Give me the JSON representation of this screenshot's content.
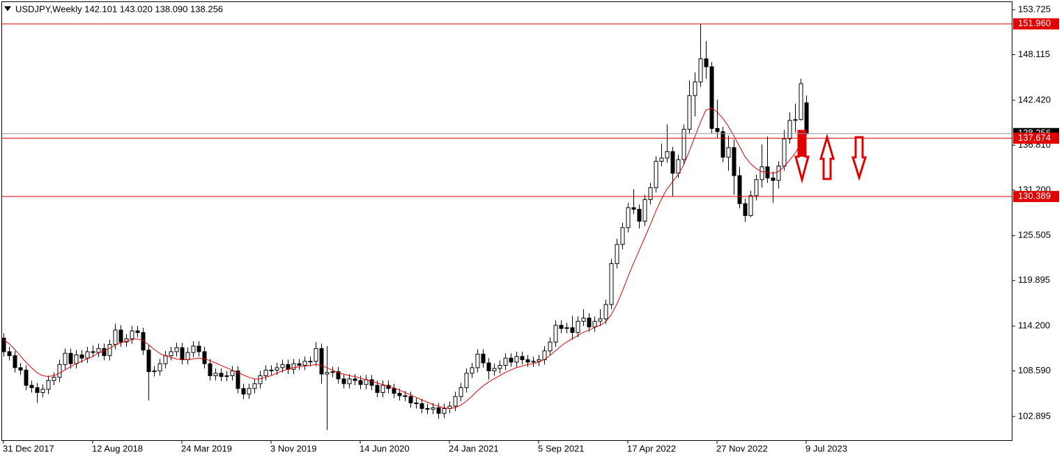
{
  "chart_data": {
    "type": "candlestick",
    "title": "USDJPY,Weekly  142.101 143.020 138.090 138.256",
    "categories": [
      "31 Dec 2017",
      null,
      null,
      null,
      null,
      null,
      null,
      null,
      null,
      null,
      null,
      null,
      null,
      null,
      null,
      null,
      "12 Aug 2018",
      null,
      null,
      null,
      null,
      null,
      null,
      null,
      null,
      null,
      null,
      null,
      null,
      null,
      null,
      null,
      "24 Mar 2019",
      null,
      null,
      null,
      null,
      null,
      null,
      null,
      null,
      null,
      null,
      null,
      null,
      null,
      null,
      null,
      "3 Nov 2019",
      null,
      null,
      null,
      null,
      null,
      null,
      null,
      null,
      null,
      null,
      null,
      null,
      null,
      null,
      null,
      "14 Jun 2020",
      null,
      null,
      null,
      null,
      null,
      null,
      null,
      null,
      null,
      null,
      null,
      null,
      null,
      null,
      null,
      "24 Jan 2021",
      null,
      null,
      null,
      null,
      null,
      null,
      null,
      null,
      null,
      null,
      null,
      null,
      null,
      null,
      null,
      "5 Sep 2021",
      null,
      null,
      null,
      null,
      null,
      null,
      null,
      null,
      null,
      null,
      null,
      null,
      null,
      null,
      null,
      "17 Apr 2022",
      null,
      null,
      null,
      null,
      null,
      null,
      null,
      null,
      null,
      null,
      null,
      null,
      null,
      null,
      null,
      "27 Nov 2022",
      null,
      null,
      null,
      null,
      null,
      null,
      null,
      null,
      null,
      null,
      null,
      null,
      null,
      null,
      null,
      "9 Jul 2023"
    ],
    "open": [
      112.7,
      111.0,
      110.5,
      109.0,
      108.7,
      106.8,
      106.5,
      105.9,
      106.3,
      107.4,
      107.8,
      109.4,
      110.8,
      109.5,
      110.6,
      110.2,
      111.0,
      110.9,
      111.4,
      110.5,
      111.9,
      113.7,
      112.2,
      112.6,
      113.6,
      113.4,
      111.2,
      108.5,
      108.6,
      109.5,
      110.5,
      111.0,
      111.5,
      110.0,
      110.9,
      111.7,
      111.0,
      109.5,
      108.0,
      108.3,
      107.9,
      108.0,
      108.6,
      106.4,
      105.7,
      106.4,
      107.0,
      108.0,
      108.7,
      108.7,
      109.0,
      109.4,
      108.8,
      109.5,
      109.3,
      109.8,
      109.8,
      111.4,
      108.2,
      108.4,
      108.5,
      107.6,
      107.0,
      107.6,
      107.4,
      106.9,
      107.5,
      106.8,
      105.9,
      106.8,
      106.4,
      105.8,
      105.5,
      105.4,
      104.6,
      104.5,
      103.9,
      103.8,
      104.0,
      103.3,
      103.9,
      104.2,
      105.4,
      106.5,
      108.3,
      109.0,
      110.7,
      109.6,
      108.6,
      108.9,
      109.3,
      110.2,
      109.7,
      110.4,
      110.0,
      109.7,
      109.8,
      110.0,
      111.1,
      112.2,
      114.3,
      113.9,
      114.0,
      113.4,
      114.8,
      115.2,
      114.1,
      114.8,
      115.1,
      116.9,
      122.0,
      124.4,
      126.5,
      129.0,
      128.8,
      127.3,
      130.0,
      131.5,
      134.8,
      135.2,
      136.0,
      133.3,
      135.0,
      138.8,
      143.0,
      144.7,
      147.6,
      146.6,
      138.9,
      138.5,
      135.3,
      136.5,
      133.0,
      129.5,
      128.0,
      130.5,
      132.5,
      134.1,
      132.7,
      132.4,
      134.2,
      137.6,
      139.9,
      140.0,
      142.101
    ],
    "high": [
      113.3,
      111.6,
      111.1,
      109.6,
      109.3,
      107.4,
      107.1,
      106.9,
      108.0,
      108.4,
      110.0,
      111.4,
      111.4,
      111.2,
      111.2,
      111.6,
      111.8,
      112.0,
      112.0,
      112.5,
      114.5,
      114.3,
      113.2,
      114.2,
      114.2,
      114.0,
      111.8,
      109.2,
      110.1,
      111.1,
      111.6,
      112.1,
      112.1,
      111.5,
      112.3,
      112.3,
      111.6,
      110.1,
      108.9,
      108.9,
      108.6,
      109.2,
      109.2,
      107.0,
      107.0,
      107.6,
      108.6,
      109.3,
      109.3,
      109.6,
      110.0,
      110.0,
      110.1,
      110.1,
      110.4,
      110.4,
      112.2,
      112.0,
      111.7,
      109.1,
      109.1,
      108.2,
      108.2,
      108.2,
      108.0,
      108.1,
      108.1,
      107.4,
      107.4,
      107.4,
      107.0,
      106.4,
      106.1,
      106.0,
      105.2,
      105.1,
      104.5,
      104.6,
      104.6,
      104.5,
      104.8,
      106.0,
      107.1,
      108.9,
      109.6,
      111.3,
      111.3,
      110.2,
      109.5,
      109.9,
      110.8,
      110.8,
      111.0,
      111.0,
      110.6,
      110.4,
      110.6,
      111.7,
      112.8,
      114.9,
      114.9,
      114.6,
      115.5,
      115.4,
      116.3,
      115.8,
      115.4,
      116.3,
      117.5,
      122.6,
      125.1,
      127.1,
      129.6,
      131.3,
      129.4,
      130.6,
      132.1,
      135.4,
      137.0,
      139.4,
      136.6,
      135.6,
      139.4,
      144.9,
      145.9,
      151.96,
      149.8,
      147.2,
      142.5,
      139.1,
      138.0,
      137.5,
      134.1,
      130.1,
      131.1,
      133.1,
      136.9,
      137.9,
      133.5,
      134.8,
      138.7,
      140.9,
      142.0,
      145.1,
      143.02
    ],
    "low": [
      110.4,
      109.9,
      108.4,
      108.1,
      106.2,
      105.9,
      104.6,
      105.3,
      105.7,
      106.8,
      107.2,
      108.8,
      108.9,
      108.9,
      109.6,
      109.6,
      110.3,
      110.3,
      109.9,
      109.9,
      111.3,
      111.6,
      111.6,
      112.0,
      112.8,
      110.6,
      104.9,
      107.9,
      108.0,
      108.9,
      109.9,
      110.4,
      109.4,
      109.4,
      110.3,
      110.4,
      108.9,
      107.4,
      107.4,
      107.3,
      107.3,
      107.4,
      105.8,
      105.1,
      105.1,
      105.8,
      106.4,
      107.4,
      108.1,
      108.1,
      108.4,
      108.2,
      108.2,
      108.7,
      108.7,
      109.2,
      109.2,
      107.0,
      101.2,
      107.8,
      107.0,
      106.4,
      106.4,
      106.8,
      106.3,
      106.3,
      106.2,
      105.3,
      105.3,
      105.8,
      105.2,
      104.9,
      104.8,
      104.0,
      103.9,
      103.3,
      103.2,
      103.2,
      102.6,
      102.7,
      103.3,
      103.6,
      104.8,
      105.9,
      107.7,
      108.4,
      109.0,
      107.5,
      108.0,
      108.3,
      108.7,
      109.1,
      109.1,
      109.4,
      109.1,
      109.1,
      109.2,
      109.4,
      110.5,
      111.6,
      113.3,
      113.3,
      112.5,
      112.8,
      114.2,
      113.5,
      113.5,
      114.2,
      114.5,
      116.3,
      121.4,
      123.8,
      125.9,
      128.2,
      126.4,
      126.7,
      129.4,
      130.9,
      134.2,
      134.6,
      130.4,
      132.7,
      134.4,
      138.2,
      140.4,
      144.1,
      145.1,
      138.3,
      137.7,
      134.7,
      133.6,
      130.6,
      128.9,
      127.2,
      127.8,
      129.9,
      131.5,
      132.1,
      129.6,
      131.4,
      133.6,
      137.0,
      138.4,
      139.9,
      138.09
    ],
    "close": [
      111.0,
      110.5,
      109.0,
      108.7,
      106.8,
      106.5,
      105.9,
      106.3,
      107.4,
      107.8,
      109.4,
      110.8,
      109.5,
      110.6,
      110.2,
      111.0,
      110.9,
      111.4,
      110.5,
      111.9,
      113.7,
      112.2,
      112.6,
      113.6,
      113.4,
      111.2,
      108.5,
      108.6,
      109.5,
      110.5,
      111.0,
      111.5,
      110.0,
      110.9,
      111.7,
      111.0,
      109.5,
      108.0,
      108.3,
      107.9,
      108.0,
      108.6,
      106.4,
      105.7,
      106.4,
      107.0,
      108.0,
      108.7,
      108.7,
      109.0,
      109.4,
      108.8,
      109.5,
      109.3,
      109.8,
      109.8,
      111.4,
      108.2,
      108.4,
      108.5,
      107.6,
      107.0,
      107.6,
      107.4,
      106.9,
      107.5,
      106.8,
      105.9,
      106.8,
      106.4,
      105.8,
      105.5,
      105.4,
      104.6,
      104.5,
      103.9,
      103.8,
      104.0,
      103.3,
      103.9,
      104.2,
      105.4,
      106.5,
      108.3,
      109.0,
      110.7,
      109.6,
      108.6,
      108.9,
      109.3,
      110.2,
      109.7,
      110.4,
      110.0,
      109.7,
      109.8,
      110.0,
      111.1,
      112.2,
      114.3,
      113.9,
      114.0,
      113.4,
      114.8,
      115.2,
      114.1,
      114.8,
      115.1,
      116.9,
      122.0,
      124.4,
      126.5,
      129.0,
      128.8,
      127.3,
      130.0,
      131.5,
      134.8,
      135.2,
      136.0,
      133.3,
      135.0,
      138.8,
      143.0,
      144.7,
      147.6,
      146.6,
      138.9,
      138.5,
      135.3,
      136.5,
      133.0,
      129.5,
      128.0,
      130.5,
      132.5,
      134.1,
      132.7,
      132.4,
      134.2,
      137.6,
      139.9,
      140.0,
      144.5,
      138.256
    ],
    "ma": {
      "color": "#e00000",
      "values": [
        112.5,
        112.0,
        111.3,
        110.5,
        109.7,
        109.0,
        108.4,
        108.0,
        107.9,
        108.0,
        108.3,
        108.7,
        109.1,
        109.5,
        109.8,
        110.1,
        110.4,
        110.8,
        111.1,
        111.4,
        111.8,
        112.1,
        112.3,
        112.5,
        112.6,
        112.4,
        111.9,
        111.3,
        110.8,
        110.5,
        110.3,
        110.1,
        110.0,
        110.0,
        110.1,
        110.2,
        110.1,
        109.9,
        109.6,
        109.3,
        109.0,
        108.7,
        108.4,
        108.1,
        107.8,
        107.6,
        107.6,
        107.8,
        108.0,
        108.3,
        108.6,
        108.8,
        109.0,
        109.1,
        109.2,
        109.3,
        109.4,
        109.3,
        109.0,
        108.7,
        108.4,
        108.2,
        108.0,
        107.9,
        107.7,
        107.5,
        107.3,
        107.1,
        106.9,
        106.7,
        106.5,
        106.2,
        105.9,
        105.6,
        105.3,
        105.0,
        104.7,
        104.4,
        104.2,
        104.0,
        103.9,
        104.0,
        104.3,
        104.8,
        105.4,
        106.1,
        106.7,
        107.2,
        107.6,
        108.0,
        108.4,
        108.7,
        109.0,
        109.2,
        109.4,
        109.5,
        109.7,
        110.0,
        110.5,
        111.1,
        111.7,
        112.2,
        112.6,
        113.0,
        113.4,
        113.7,
        114.0,
        114.3,
        114.7,
        115.6,
        116.9,
        118.5,
        120.3,
        122.0,
        123.6,
        125.2,
        126.8,
        128.5,
        130.0,
        131.3,
        132.2,
        133.1,
        134.3,
        136.0,
        137.8,
        139.6,
        141.2,
        141.4,
        141.0,
        140.2,
        139.2,
        138.0,
        136.7,
        135.4,
        134.5,
        133.9,
        133.5,
        133.4,
        133.3,
        133.5,
        134.1,
        134.9,
        135.8,
        136.9,
        137.8
      ]
    },
    "ylim": [
      99.94,
      154.77
    ],
    "yticks": [
      153.725,
      148.115,
      {
        "value": 142.42,
        "label": "142.420"
      },
      {
        "value": 136.81,
        "label": "136.810"
      },
      {
        "value": 131.2,
        "label": "131.200"
      },
      125.505,
      119.895,
      {
        "value": 114.2,
        "label": "114.200"
      },
      {
        "value": 108.59,
        "label": "108.590"
      },
      102.895
    ],
    "grid": false,
    "current_price": {
      "value": 138.256,
      "color": "#8c9aa6"
    },
    "levels": [
      {
        "value": 151.96,
        "label": "151.960"
      },
      137.674,
      130.389
    ],
    "level_color": "#e00000"
  }
}
